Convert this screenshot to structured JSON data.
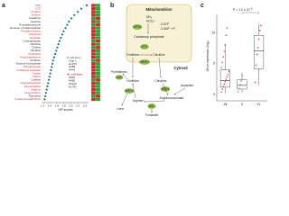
{
  "a": {
    "letter": "a",
    "metabolites": [
      "UDP",
      "GTP",
      "Creatine",
      "Betaine",
      "Creatinine",
      "Guanine",
      "N-acetylputrescine",
      "Fructose 1,6-bisphosphate",
      "Phosphocreatine",
      "Glutamine",
      "Aspartate",
      "α-ketoglutarate",
      "Carnitine",
      "Choline",
      "Citrulline",
      "Pyridoxine",
      "N-acetylglutamine",
      "Ornithine",
      "Glycerol 3-phosphate",
      "Dihydroorotate",
      "Carbamoyl aspartate",
      "Orotate",
      "Uridine",
      "Cytidine",
      "N-acetylaspartate",
      "Deoxycytidine",
      "Arginine",
      "Hypoxanthine",
      "Thymidine",
      "S-adenosylmethionine"
    ],
    "label_colors": [
      "#d62728",
      "#d62728",
      "#d62728",
      "#d62728",
      "#222",
      "#222",
      "#222",
      "#222",
      "#d62728",
      "#d62728",
      "#d62728",
      "#222",
      "#222",
      "#222",
      "#222",
      "#d62728",
      "#d62728",
      "#222",
      "#222",
      "#d62728",
      "#d62728",
      "#d62728",
      "#d62728",
      "#222",
      "#d62728",
      "#d62728",
      "#d62728",
      "#d62728",
      "#222",
      "#d62728"
    ],
    "vip_scores": [
      2.45,
      2.3,
      2.2,
      2.1,
      2.02,
      1.95,
      1.9,
      1.85,
      1.8,
      1.76,
      1.72,
      1.68,
      1.65,
      1.62,
      1.59,
      1.56,
      1.53,
      1.5,
      1.48,
      1.46,
      1.44,
      1.42,
      1.4,
      1.38,
      1.36,
      1.34,
      1.32,
      1.3,
      1.28,
      1.26
    ],
    "dot_color": "#1f6f85",
    "heatmap": [
      [
        "#d62728",
        "#2ca02c"
      ],
      [
        "#d62728",
        "#2ca02c"
      ],
      [
        "#d62728",
        "#2ca02c"
      ],
      [
        "#d62728",
        "#2ca02c"
      ],
      [
        "#2ca02c",
        "#d62728"
      ],
      [
        "#d62728",
        "#2ca02c"
      ],
      [
        "#2ca02c",
        "#d62728"
      ],
      [
        "#d62728",
        "#2ca02c"
      ],
      [
        "#d62728",
        "#2ca02c"
      ],
      [
        "#d62728",
        "#2ca02c"
      ],
      [
        "#d62728",
        "#2ca02c"
      ],
      [
        "#2ca02c",
        "#d62728"
      ],
      [
        "#d62728",
        "#2ca02c"
      ],
      [
        "#2ca02c",
        "#d62728"
      ],
      [
        "#d62728",
        "#2ca02c"
      ],
      [
        "#d62728",
        "#2ca02c"
      ],
      [
        "#d62728",
        "#2ca02c"
      ],
      [
        "#2ca02c",
        "#d62728"
      ],
      [
        "#d62728",
        "#2ca02c"
      ],
      [
        "#d62728",
        "#2ca02c"
      ],
      [
        "#d62728",
        "#2ca02c"
      ],
      [
        "#d62728",
        "#2ca02c"
      ],
      [
        "#d62728",
        "#2ca02c"
      ],
      [
        "#2ca02c",
        "#d62728"
      ],
      [
        "#d62728",
        "#2ca02c"
      ],
      [
        "#d62728",
        "#2ca02c"
      ],
      [
        "#d62728",
        "#2ca02c"
      ],
      [
        "#d62728",
        "#2ca02c"
      ],
      [
        "#2ca02c",
        "#d62728"
      ],
      [
        "#d62728",
        "#2ca02c"
      ]
    ],
    "xlabel": "VIP scores",
    "xlim": [
      1.2,
      2.5
    ],
    "xticks": [
      1.2,
      1.4,
      1.6,
      1.8,
      {
        "value": 2,
        "label": "2.0"
      },
      2.2,
      2.4
    ],
    "legend": [
      {
        "title": "K cell lines",
        "items": [
          "Calu-1",
          "H1373",
          "H358",
          "H441"
        ]
      },
      {
        "title": "KL cell lines",
        "items": [
          "A549",
          "H460",
          "H2122",
          "H1792"
        ]
      }
    ]
  },
  "b": {
    "letter": "b",
    "labels": [
      "Mitochondrion",
      "NH₃",
      "HCO₃⁻",
      "CPS1",
      "2 ATP",
      "2 ADP + Pᵢ",
      "Carbamoyl phosphate",
      "OTC",
      "Ornithine",
      "Citrulline",
      "ORNT1",
      "Cytosol",
      "Pyrimidines",
      "CAD",
      "Ornithine",
      "Citrulline",
      "ARG2",
      "ASS1",
      "Arginine",
      "ASL",
      "Argininosuccinate",
      "Aspartate",
      "Fumarate",
      "Urea"
    ]
  },
  "c": {
    "letter": "c",
    "ylabel": "Gene expression (log₂)",
    "p_value": "P = 1.2 × 10",
    "p_exponent": "−6",
    "ylim": [
      -1,
      13
    ],
    "yticks": [
      0,
      5,
      10
    ],
    "groups": [
      {
        "name": "All",
        "color": "#d6338a",
        "whisker_low": 0.2,
        "q1": 1.2,
        "median": 2.3,
        "q3": 4.0,
        "whisker_high": 8.2,
        "points": [
          0.4,
          0.9,
          1.3,
          1.7,
          2.1,
          2.5,
          2.9,
          3.3,
          3.8,
          4.4,
          5.2,
          6.1,
          7.0,
          8.0,
          9.6,
          10.8
        ]
      },
      {
        "name": "K",
        "color": "#888888",
        "whisker_low": 0.3,
        "q1": 0.9,
        "median": 1.5,
        "q3": 2.4,
        "whisker_high": 3.6,
        "points": [
          0.5,
          1.0,
          1.6,
          2.2,
          3.1
        ]
      },
      {
        "name": "KL",
        "color": "#d62728",
        "whisker_low": 1.5,
        "q1": 4.2,
        "median": 7.1,
        "q3": 9.6,
        "whisker_high": 11.5,
        "points": [
          2.0,
          4.8,
          6.5,
          7.6,
          9.0,
          10.4,
          11.2
        ]
      }
    ]
  }
}
